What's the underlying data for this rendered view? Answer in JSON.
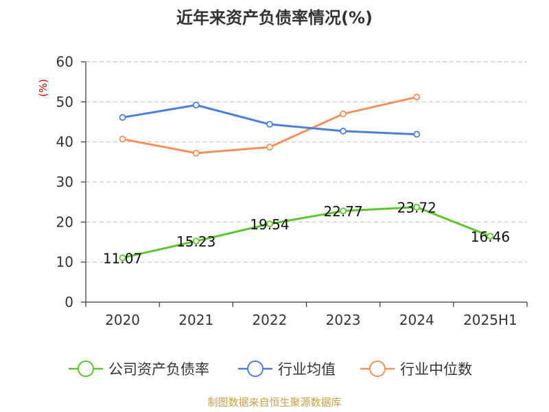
{
  "chart_data": {
    "type": "line",
    "title": "近年来资产负债率情况(%)",
    "ylabel": "(%)",
    "xlabel": "",
    "ylim": [
      0,
      60
    ],
    "yticks": [
      0,
      10,
      20,
      30,
      40,
      50,
      60
    ],
    "categories": [
      "2020",
      "2021",
      "2022",
      "2023",
      "2024",
      "2025H1"
    ],
    "grid": true,
    "legend_position": "bottom",
    "series": [
      {
        "name": "公司资产负债率",
        "color": "#5cc42c",
        "values": [
          11.07,
          15.23,
          19.54,
          22.77,
          23.72,
          16.46
        ],
        "data_labels": [
          "11.07",
          "15.23",
          "19.54",
          "22.77",
          "23.72",
          "16.46"
        ]
      },
      {
        "name": "行业均值",
        "color": "#4a7fdc",
        "values": [
          46.1,
          49.2,
          44.4,
          42.7,
          41.9,
          null
        ]
      },
      {
        "name": "行业中位数",
        "color": "#f58f5b",
        "values": [
          40.7,
          37.2,
          38.7,
          47.0,
          51.2,
          null
        ]
      }
    ]
  },
  "footer": {
    "source": "制图数据来自恒生聚源数据库"
  }
}
